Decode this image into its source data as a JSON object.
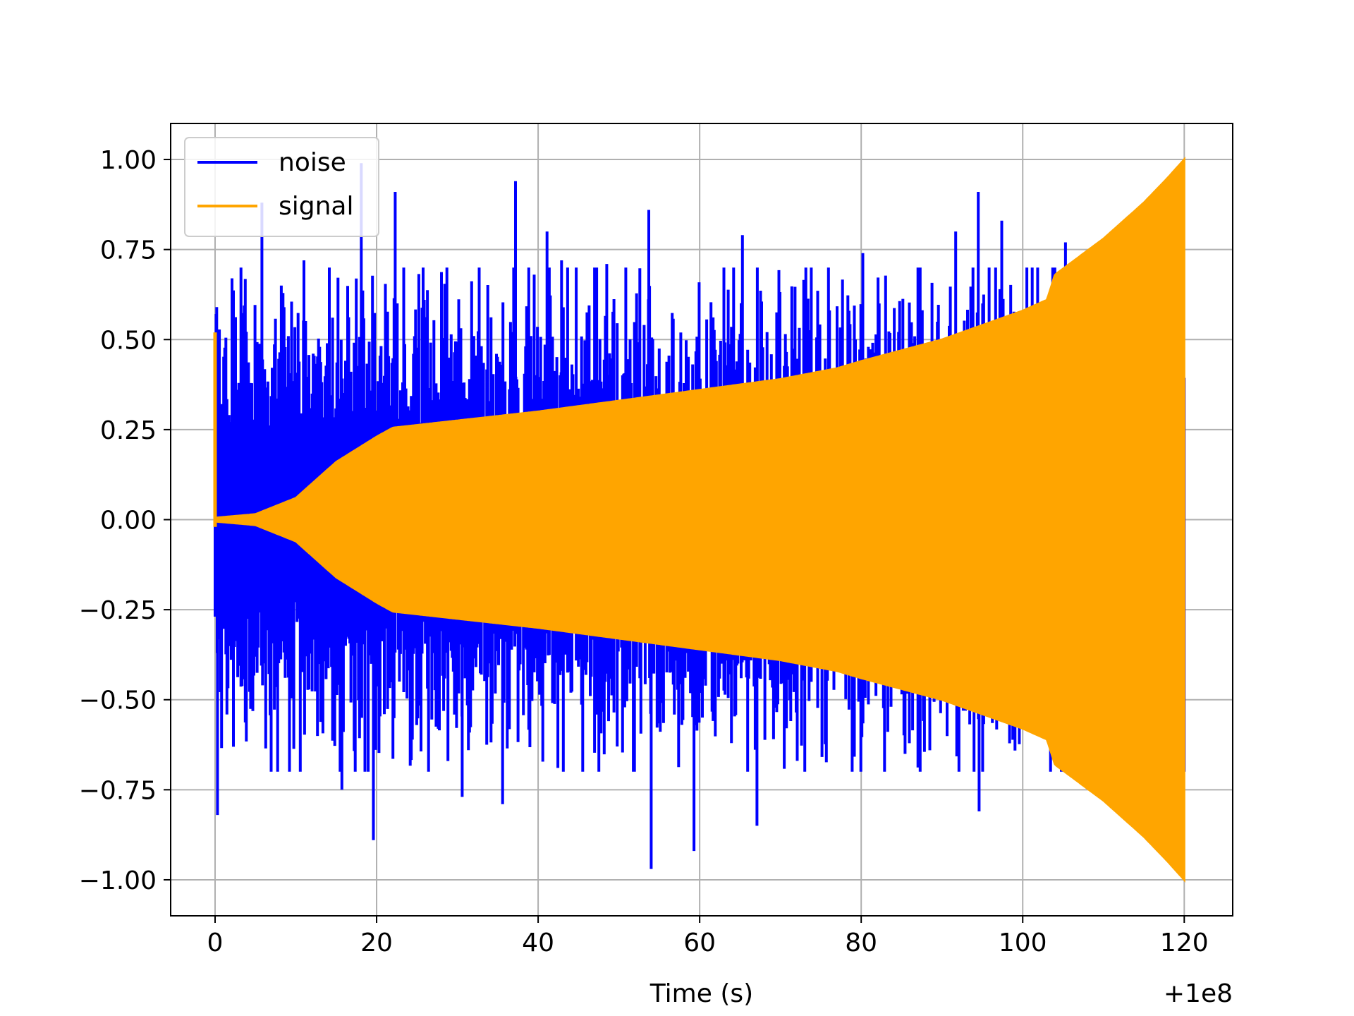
{
  "chart_data": {
    "type": "line",
    "title": "",
    "xlabel": "Time (s)",
    "ylabel": "",
    "x_offset_label": "+1e8",
    "xlim": [
      -5.5,
      126
    ],
    "ylim": [
      -1.1,
      1.1
    ],
    "xticks": [
      0,
      20,
      40,
      60,
      80,
      100,
      120
    ],
    "xtick_labels": [
      "0",
      "20",
      "40",
      "60",
      "80",
      "100",
      "120"
    ],
    "yticks": [
      1.0,
      0.75,
      0.5,
      0.25,
      0.0,
      -0.25,
      -0.5,
      -0.75,
      -1.0
    ],
    "ytick_labels": [
      "1.00",
      "0.75",
      "0.50",
      "0.25",
      "0.00",
      "−0.25",
      "−0.50",
      "−0.75",
      "−1.00"
    ],
    "grid": true,
    "legend_position": "top-left",
    "series": [
      {
        "name": "noise",
        "color": "#0000ff",
        "kind": "random noise",
        "x_range": [
          0,
          120
        ],
        "typical_amplitude": 0.4,
        "peaks": [
          {
            "x": 0.2,
            "y": 0.59
          },
          {
            "x": 0.3,
            "y": -0.82
          },
          {
            "x": 2.1,
            "y": 0.67
          },
          {
            "x": 5.8,
            "y": 0.88
          },
          {
            "x": 8.2,
            "y": 0.65
          },
          {
            "x": 11.0,
            "y": 0.72
          },
          {
            "x": 15.7,
            "y": -0.75
          },
          {
            "x": 18.1,
            "y": 0.99
          },
          {
            "x": 19.6,
            "y": -0.89
          },
          {
            "x": 22.3,
            "y": 0.91
          },
          {
            "x": 30.6,
            "y": -0.77
          },
          {
            "x": 35.6,
            "y": -0.79
          },
          {
            "x": 37.2,
            "y": 0.94
          },
          {
            "x": 41.1,
            "y": 0.8
          },
          {
            "x": 42.9,
            "y": 0.72
          },
          {
            "x": 48.5,
            "y": 0.71
          },
          {
            "x": 53.7,
            "y": 0.86
          },
          {
            "x": 54.0,
            "y": -0.97
          },
          {
            "x": 59.3,
            "y": -0.92
          },
          {
            "x": 65.3,
            "y": 0.79
          },
          {
            "x": 67.1,
            "y": -0.85
          },
          {
            "x": 80.2,
            "y": 0.74
          },
          {
            "x": 91.7,
            "y": 0.8
          },
          {
            "x": 94.5,
            "y": 0.91
          },
          {
            "x": 94.6,
            "y": -0.81
          },
          {
            "x": 97.4,
            "y": 0.83
          },
          {
            "x": 105.3,
            "y": 0.77
          }
        ]
      },
      {
        "name": "signal",
        "color": "#ffa500",
        "kind": "chirp",
        "x_range": [
          0,
          120
        ],
        "initial_spike": {
          "x": 0,
          "y": 0.52
        },
        "envelope_amplitude": [
          [
            0,
            0.005
          ],
          [
            5,
            0.015
          ],
          [
            10,
            0.06
          ],
          [
            15,
            0.16
          ],
          [
            20,
            0.23
          ],
          [
            22,
            0.255
          ],
          [
            30,
            0.275
          ],
          [
            40,
            0.3
          ],
          [
            50,
            0.33
          ],
          [
            60,
            0.36
          ],
          [
            70,
            0.39
          ],
          [
            77,
            0.42
          ],
          [
            80,
            0.44
          ],
          [
            90,
            0.5
          ],
          [
            95,
            0.54
          ],
          [
            100,
            0.58
          ],
          [
            103,
            0.61
          ],
          [
            104,
            0.68
          ],
          [
            110,
            0.78
          ],
          [
            115,
            0.88
          ],
          [
            118,
            0.95
          ],
          [
            120,
            1.0
          ]
        ]
      }
    ]
  }
}
